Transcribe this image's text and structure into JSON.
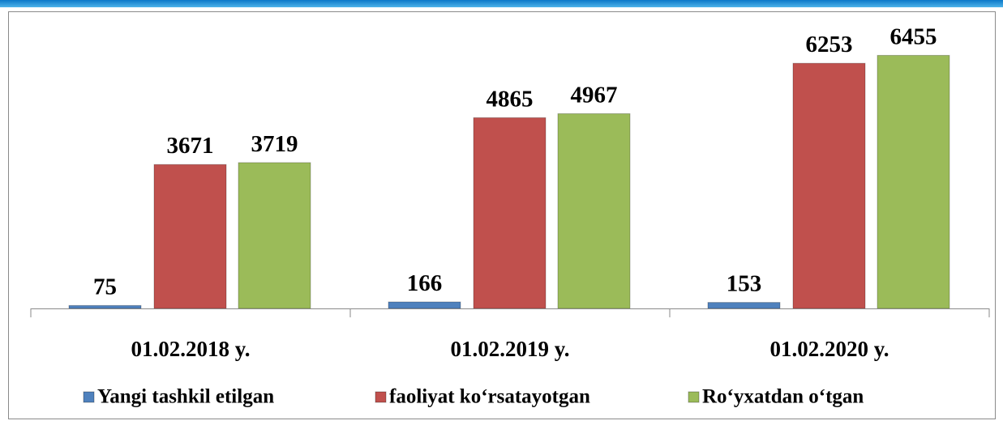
{
  "chart_data": {
    "type": "bar",
    "categories": [
      "01.02.2018 y.",
      "01.02.2019 y.",
      "01.02.2020 y."
    ],
    "series": [
      {
        "name": "Yangi tashkil etilgan",
        "color": "#4f81bd",
        "values": [
          75,
          166,
          153
        ]
      },
      {
        "name": "faoliyat ko‘rsatayotgan",
        "color": "#c0504d",
        "values": [
          3671,
          4865,
          6253
        ]
      },
      {
        "name": "Ro‘yxatdan o‘tgan",
        "color": "#9bbb59",
        "values": [
          3719,
          4967,
          6455
        ]
      }
    ],
    "ylim": [
      0,
      7000
    ]
  }
}
